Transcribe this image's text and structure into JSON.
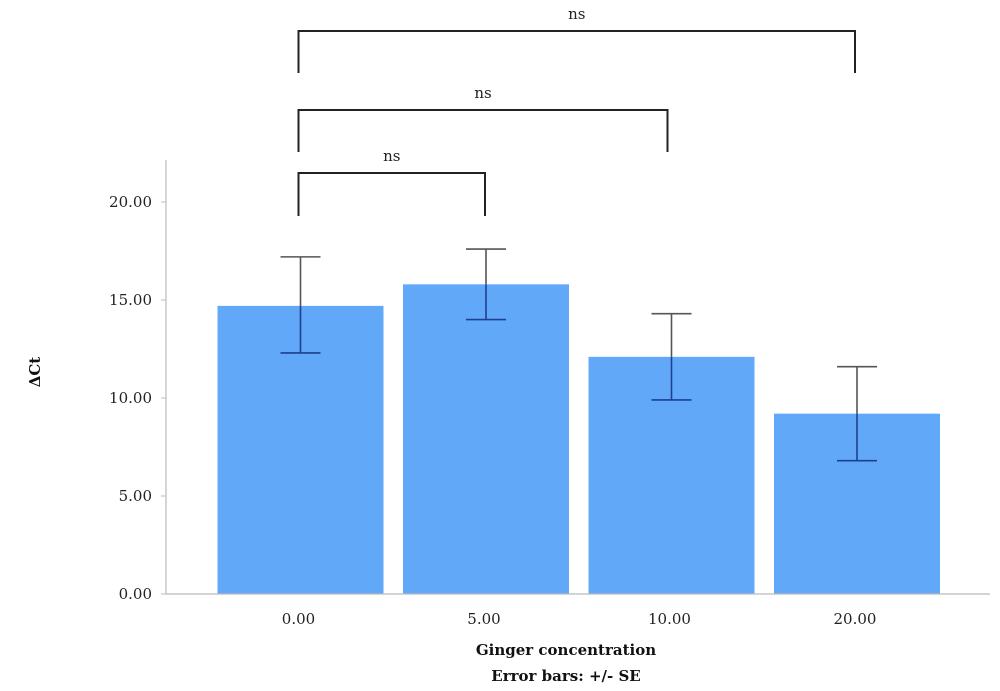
{
  "chart_data": {
    "type": "bar",
    "categories": [
      "0.00",
      "5.00",
      "10.00",
      "20.00"
    ],
    "values": [
      14.7,
      15.8,
      12.1,
      9.2
    ],
    "error_plus": [
      2.5,
      1.8,
      2.2,
      2.4
    ],
    "error_minus": [
      2.4,
      1.8,
      2.2,
      2.4
    ],
    "xlabel": "Ginger concentration",
    "ylabel": "ΔCt",
    "note": "Error bars: +/- SE",
    "ylim": [
      0,
      22
    ],
    "yticks": [
      "0.00",
      "5.00",
      "10.00",
      "15.00",
      "20.00"
    ],
    "grid": false,
    "significance": [
      {
        "from": 0,
        "to": 1,
        "label": "ns"
      },
      {
        "from": 0,
        "to": 2,
        "label": "ns"
      },
      {
        "from": 0,
        "to": 3,
        "label": "ns"
      }
    ],
    "colors": {
      "bar": "#61a8f9",
      "error_bar": "#555555",
      "error_bar_inner": "#1f3f8f",
      "bracket": "#222222",
      "axis": "#bbbbbb"
    }
  }
}
